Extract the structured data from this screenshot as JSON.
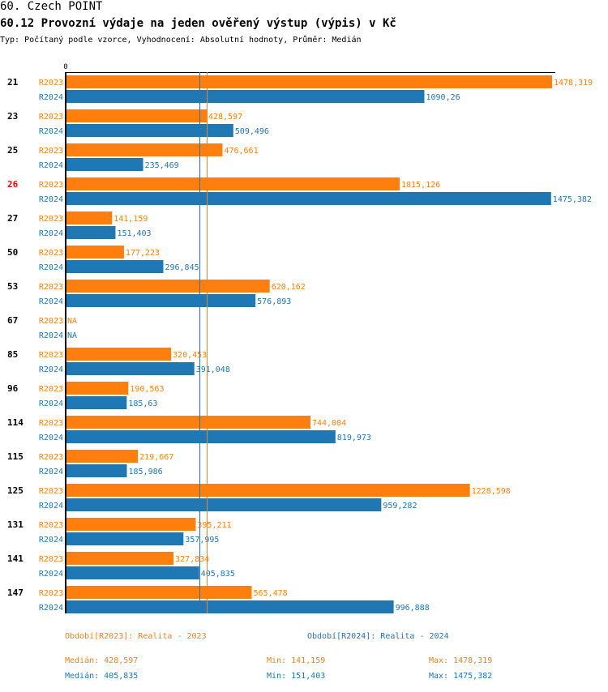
{
  "header": {
    "section": "60. Czech POINT",
    "title": "60.12 Provozní výdaje na jeden ověřený výstup (výpis) v Kč",
    "subtitle": "Typ: Počítaný podle vzorce, Vyhodnocení: Absolutní hodnoty, Průměr: Medián"
  },
  "colors": {
    "r2023": "#ff7f0e",
    "r2024": "#1f77b4",
    "highlight": "#ff0000",
    "axis": "#000000"
  },
  "chart_data": {
    "type": "bar",
    "orientation": "horizontal",
    "title": "60.12 Provozní výdaje na jeden ověřený výstup (výpis) v Kč",
    "xlabel": "",
    "ylabel": "",
    "x_tick_labels": [
      "0"
    ],
    "xlim": [
      0,
      1478.319
    ],
    "highlighted_category": "26",
    "categories": [
      "21",
      "23",
      "25",
      "26",
      "27",
      "50",
      "53",
      "67",
      "85",
      "96",
      "114",
      "115",
      "125",
      "131",
      "141",
      "147"
    ],
    "series": [
      {
        "name": "R2023",
        "label": "R2023",
        "values": [
          1478.319,
          428.597,
          476.661,
          1015.126,
          141.159,
          177.223,
          620.162,
          null,
          320.453,
          190.563,
          744.004,
          219.667,
          1228.598,
          395.211,
          327.834,
          565.478
        ],
        "value_labels": [
          "1478,319",
          "428,597",
          "476,661",
          "1015,126",
          "141,159",
          "177,223",
          "620,162",
          "NA",
          "320,453",
          "190,563",
          "744,004",
          "219,667",
          "1228,598",
          "395,211",
          "327,834",
          "565,478"
        ]
      },
      {
        "name": "R2024",
        "label": "R2024",
        "values": [
          1090.26,
          509.496,
          235.469,
          1475.382,
          151.403,
          296.845,
          576.893,
          null,
          391.048,
          185.63,
          819.973,
          185.986,
          959.282,
          357.995,
          405.835,
          996.888
        ],
        "value_labels": [
          "1090,26",
          "509,496",
          "235,469",
          "1475,382",
          "151,403",
          "296,845",
          "576,893",
          "NA",
          "391,048",
          "185,63",
          "819,973",
          "185,986",
          "959,282",
          "357,995",
          "405,835",
          "996,888"
        ]
      }
    ],
    "reference_lines": [
      {
        "series": "R2023",
        "type": "median",
        "value": 428.597
      },
      {
        "series": "R2024",
        "type": "median",
        "value": 405.835
      }
    ],
    "legend": [
      {
        "series": "R2023",
        "text": "Období[R2023]: Realita - 2023"
      },
      {
        "series": "R2024",
        "text": "Období[R2024]: Realita - 2024"
      }
    ],
    "legend_position": "bottom",
    "stats": [
      {
        "series": "R2023",
        "median": "Medián: 428,597",
        "min": "Min: 141,159",
        "max": "Max: 1478,319"
      },
      {
        "series": "R2024",
        "median": "Medián: 405,835",
        "min": "Min: 151,403",
        "max": "Max: 1475,382"
      }
    ]
  }
}
